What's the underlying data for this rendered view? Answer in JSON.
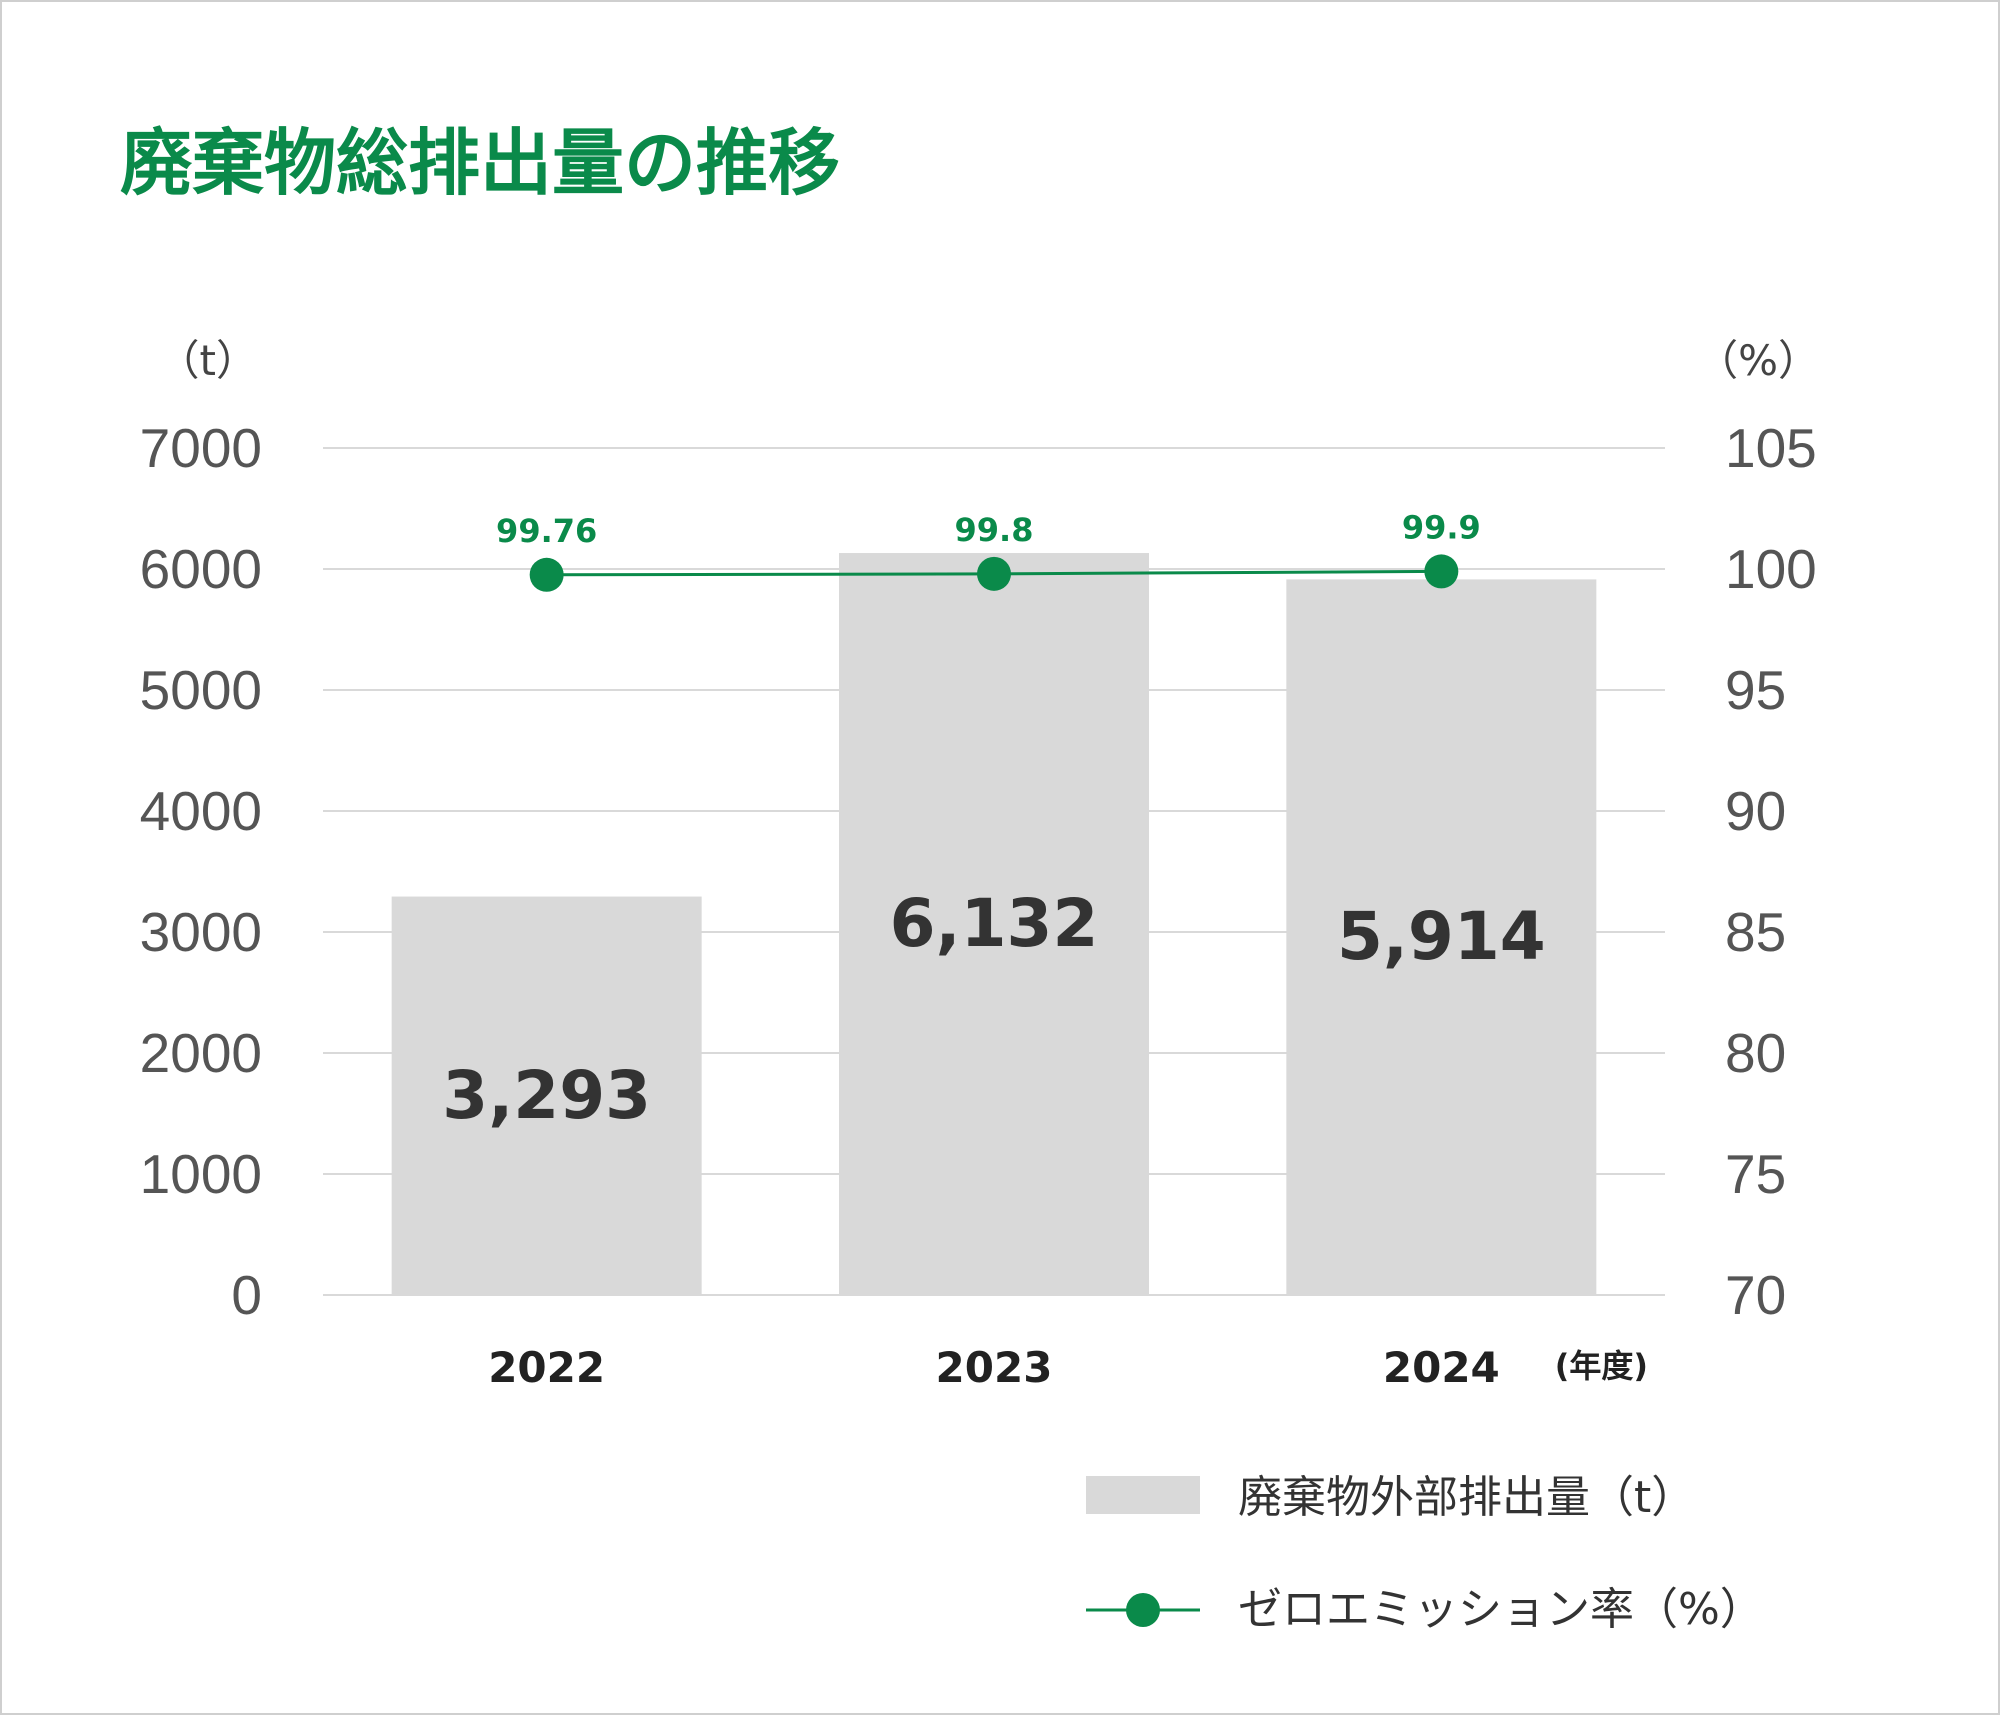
{
  "chart_data": {
    "type": "bar",
    "title": "廃棄物総排出量の推移",
    "categories": [
      "2022",
      "2023",
      "2024"
    ],
    "x_unit_label": "(年度)",
    "y_left": {
      "unit_label": "（t）",
      "ticks": [
        "7000",
        "6000",
        "5000",
        "4000",
        "3000",
        "2000",
        "1000",
        "0"
      ],
      "ylim": [
        0,
        7000
      ]
    },
    "y_right": {
      "unit_label": "（%）",
      "ticks": [
        "105",
        "100",
        "95",
        "90",
        "85",
        "80",
        "75",
        "70"
      ],
      "ylim": [
        70,
        105
      ]
    },
    "series": [
      {
        "name": "廃棄物外部排出量（t）",
        "type": "bar",
        "axis": "left",
        "values": [
          3293,
          6132,
          5914
        ],
        "labels": [
          "3,293",
          "6,132",
          "5,914"
        ]
      },
      {
        "name": "ゼロエミッション率（%）",
        "type": "line",
        "axis": "right",
        "values": [
          99.76,
          99.8,
          99.9
        ],
        "labels": [
          "99.76",
          "99.8",
          "99.9"
        ]
      }
    ],
    "grid": true,
    "legend_position": "bottom-right"
  },
  "colors": {
    "title": "#0a8a4a",
    "bar": "#d9d9d9",
    "line": "#0a8a4a",
    "grid": "#d9d9d9"
  }
}
